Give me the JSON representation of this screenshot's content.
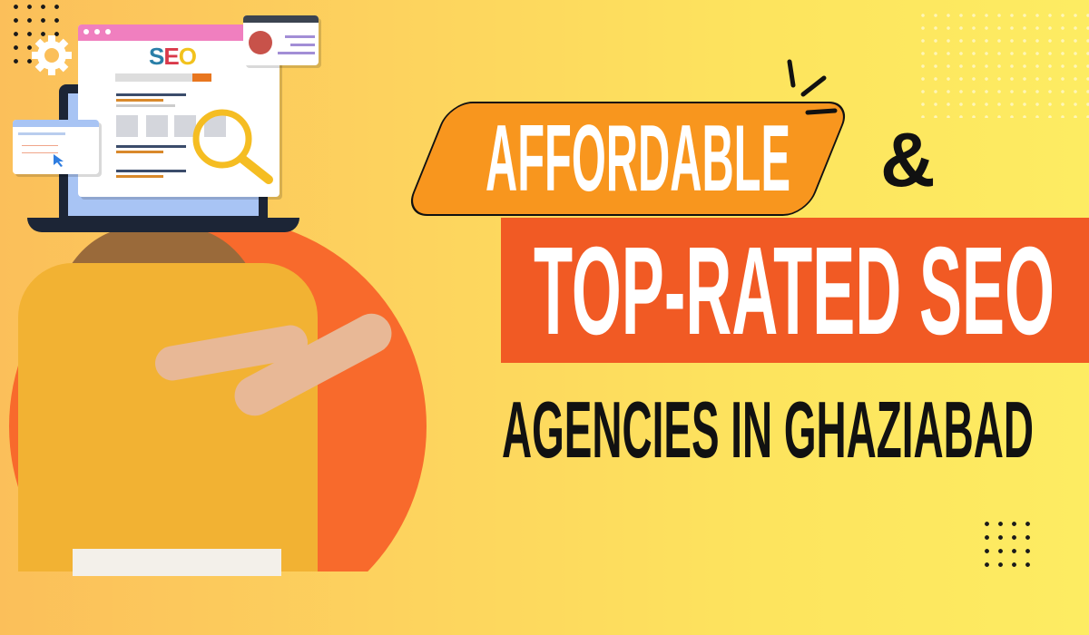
{
  "headline": {
    "line1": "AFFORDABLE",
    "ampersand": "&",
    "line2": "TOP-RATED SEO",
    "line3": "AGENCIES IN GHAZIABAD"
  },
  "illustration": {
    "browser_logo": "SEO",
    "icons": [
      "gear-icon",
      "magnifier-icon",
      "user-profile-icon",
      "cursor-icon",
      "laptop-icon"
    ]
  },
  "colors": {
    "orange_tag": "#f8961e",
    "orange_bar": "#f15a24",
    "circle": "#f86a2c",
    "background": "#fde45e",
    "shirt": "#f2b233"
  }
}
